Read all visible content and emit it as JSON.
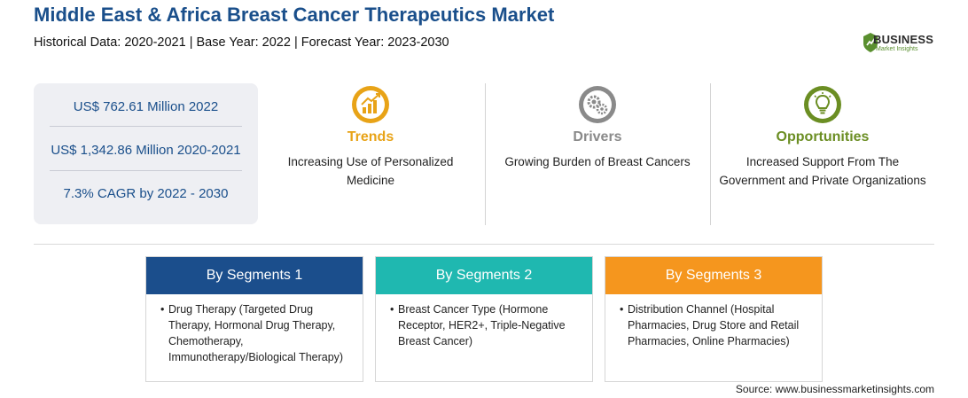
{
  "header": {
    "title": "Middle East & Africa Breast Cancer Therapeutics Market",
    "subtitle": "Historical Data: 2020-2021 | Base Year: 2022 | Forecast Year: 2023-2030"
  },
  "logo": {
    "word": "BUSINESS",
    "sub": "Market Insights",
    "color": "#5a8f2f"
  },
  "stats": [
    {
      "text": "US$ 762.61 Million 2022"
    },
    {
      "text": "US$ 1,342.86 Million 2020-2021"
    },
    {
      "text": "7.3% CAGR by 2022 - 2030"
    }
  ],
  "columns": [
    {
      "heading": "Trends",
      "text": "Increasing Use of Personalized Medicine",
      "color": "#e8a317",
      "icon": "growth-chart-icon"
    },
    {
      "heading": "Drivers",
      "text": "Growing Burden of Breast Cancers",
      "color": "#8a8a8a",
      "icon": "gears-icon"
    },
    {
      "heading": "Opportunities",
      "text": "Increased Support From The Government and Private Organizations",
      "color": "#6b8e23",
      "icon": "lightbulb-icon"
    }
  ],
  "segments": [
    {
      "title": "By Segments 1",
      "color": "#1b4e8c",
      "items": [
        "Drug Therapy (Targeted Drug Therapy, Hormonal Drug Therapy, Chemotherapy, Immunotherapy/Biological Therapy)"
      ]
    },
    {
      "title": "By Segments 2",
      "color": "#1fb8b0",
      "items": [
        "Breast Cancer Type (Hormone Receptor, HER2+, Triple-Negative Breast Cancer)"
      ]
    },
    {
      "title": "By Segments 3",
      "color": "#f5961e",
      "items": [
        "Distribution Channel (Hospital Pharmacies, Drug Store and Retail Pharmacies, Online Pharmacies)"
      ]
    }
  ],
  "source": "Source: www.businessmarketinsights.com"
}
